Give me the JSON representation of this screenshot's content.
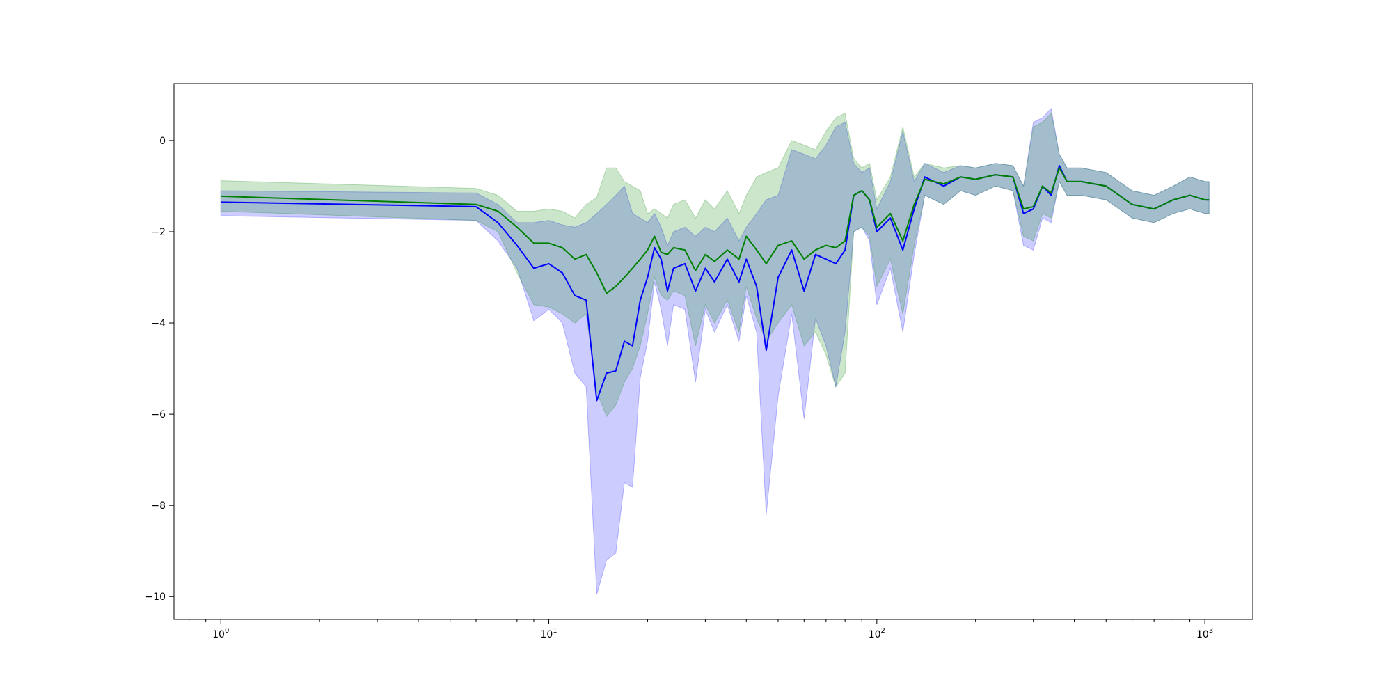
{
  "chart_data": {
    "type": "line",
    "title": "",
    "xlabel": "",
    "ylabel": "",
    "x_scale": "log",
    "xlim": [
      0.72,
      1400
    ],
    "ylim": [
      -10.5,
      1.25
    ],
    "grid": false,
    "legend": "none",
    "x_ticks": [
      {
        "value": 1,
        "base": "10",
        "exp": "0"
      },
      {
        "value": 10,
        "base": "10",
        "exp": "1"
      },
      {
        "value": 100,
        "base": "10",
        "exp": "2"
      },
      {
        "value": 1000,
        "base": "10",
        "exp": "3"
      }
    ],
    "y_ticks": [
      {
        "value": 0,
        "label": "0"
      },
      {
        "value": -2,
        "label": "−2"
      },
      {
        "value": -4,
        "label": "−4"
      },
      {
        "value": -6,
        "label": "−6"
      },
      {
        "value": -8,
        "label": "−8"
      },
      {
        "value": -10,
        "label": "−10"
      }
    ],
    "series": [
      {
        "color": "#0000ff",
        "band_color": "#0000ff",
        "band_opacity": 0.2,
        "x": [
          1,
          6,
          7,
          8,
          9,
          10,
          11,
          12,
          13,
          14,
          15,
          16,
          17,
          18,
          19,
          20,
          21,
          22,
          23,
          24,
          26,
          28,
          30,
          32,
          35,
          38,
          40,
          43,
          46,
          50,
          55,
          60,
          65,
          70,
          75,
          80,
          85,
          90,
          95,
          100,
          110,
          120,
          130,
          140,
          160,
          180,
          200,
          230,
          260,
          280,
          300,
          320,
          340,
          360,
          380,
          420,
          500,
          600,
          700,
          800,
          900,
          1000,
          1030
        ],
        "y": [
          -1.35,
          -1.45,
          -1.8,
          -2.3,
          -2.8,
          -2.7,
          -2.9,
          -3.4,
          -3.5,
          -5.7,
          -5.1,
          -5.05,
          -4.4,
          -4.5,
          -3.5,
          -3.0,
          -2.35,
          -2.6,
          -3.3,
          -2.8,
          -2.7,
          -3.3,
          -2.8,
          -3.1,
          -2.6,
          -3.1,
          -2.6,
          -3.2,
          -4.6,
          -3.0,
          -2.4,
          -3.3,
          -2.5,
          -2.6,
          -2.7,
          -2.4,
          -1.2,
          -1.1,
          -1.3,
          -2.0,
          -1.7,
          -2.4,
          -1.5,
          -0.8,
          -1.0,
          -0.8,
          -0.85,
          -0.75,
          -0.8,
          -1.6,
          -1.5,
          -1.0,
          -1.2,
          -0.55,
          -0.9,
          -0.9,
          -1.0,
          -1.4,
          -1.5,
          -1.3,
          -1.2,
          -1.3,
          -1.3
        ],
        "lower": [
          -1.65,
          -1.75,
          -2.2,
          -2.8,
          -3.95,
          -3.7,
          -4.0,
          -5.1,
          -5.4,
          -9.95,
          -9.2,
          -9.05,
          -7.5,
          -7.6,
          -5.2,
          -4.4,
          -3.1,
          -3.7,
          -4.5,
          -3.6,
          -3.7,
          -5.3,
          -3.7,
          -4.2,
          -3.6,
          -4.4,
          -3.4,
          -4.2,
          -8.2,
          -5.6,
          -3.8,
          -6.1,
          -3.9,
          -4.5,
          -5.4,
          -4.2,
          -2.0,
          -1.9,
          -2.2,
          -3.6,
          -2.8,
          -4.2,
          -2.5,
          -1.2,
          -1.4,
          -1.1,
          -1.2,
          -1.0,
          -1.1,
          -2.3,
          -2.4,
          -1.7,
          -1.8,
          -0.9,
          -1.2,
          -1.2,
          -1.3,
          -1.7,
          -1.8,
          -1.6,
          -1.5,
          -1.6,
          -1.6
        ],
        "upper": [
          -1.1,
          -1.15,
          -1.4,
          -1.8,
          -1.8,
          -1.75,
          -1.85,
          -1.9,
          -1.8,
          -1.6,
          -1.4,
          -1.2,
          -1.0,
          -1.6,
          -1.7,
          -1.8,
          -1.6,
          -1.9,
          -2.3,
          -2.0,
          -1.9,
          -2.1,
          -1.9,
          -2.0,
          -1.7,
          -2.2,
          -1.9,
          -1.6,
          -1.3,
          -1.2,
          -0.2,
          -0.3,
          -0.4,
          -0.1,
          0.3,
          0.4,
          -0.5,
          -0.7,
          -0.6,
          -1.5,
          -0.9,
          0.2,
          -0.9,
          -0.5,
          -0.7,
          -0.55,
          -0.6,
          -0.5,
          -0.55,
          -1.0,
          0.4,
          0.5,
          0.7,
          -0.3,
          -0.6,
          -0.6,
          -0.7,
          -1.1,
          -1.2,
          -1.0,
          -0.8,
          -0.9,
          -0.9
        ]
      },
      {
        "color": "#008000",
        "band_color": "#008000",
        "band_opacity": 0.2,
        "x": [
          1,
          6,
          7,
          8,
          9,
          10,
          11,
          12,
          13,
          14,
          15,
          16,
          17,
          18,
          19,
          20,
          21,
          22,
          23,
          24,
          26,
          28,
          30,
          32,
          35,
          38,
          40,
          43,
          46,
          50,
          55,
          60,
          65,
          70,
          75,
          80,
          85,
          90,
          95,
          100,
          110,
          120,
          130,
          140,
          160,
          180,
          200,
          230,
          260,
          280,
          300,
          320,
          340,
          360,
          380,
          420,
          500,
          600,
          700,
          800,
          900,
          1000,
          1030
        ],
        "y": [
          -1.22,
          -1.4,
          -1.55,
          -1.9,
          -2.25,
          -2.25,
          -2.35,
          -2.6,
          -2.5,
          -2.9,
          -3.35,
          -3.2,
          -3.0,
          -2.8,
          -2.6,
          -2.4,
          -2.1,
          -2.45,
          -2.5,
          -2.35,
          -2.4,
          -2.85,
          -2.5,
          -2.65,
          -2.4,
          -2.6,
          -2.1,
          -2.4,
          -2.7,
          -2.3,
          -2.2,
          -2.6,
          -2.4,
          -2.3,
          -2.35,
          -2.2,
          -1.2,
          -1.1,
          -1.3,
          -1.9,
          -1.6,
          -2.2,
          -1.4,
          -0.85,
          -0.95,
          -0.8,
          -0.85,
          -0.75,
          -0.8,
          -1.5,
          -1.45,
          -1.0,
          -1.15,
          -0.6,
          -0.9,
          -0.9,
          -1.0,
          -1.4,
          -1.5,
          -1.3,
          -1.2,
          -1.3,
          -1.3
        ],
        "lower": [
          -1.55,
          -1.75,
          -2.0,
          -2.9,
          -3.6,
          -3.65,
          -3.8,
          -4.0,
          -3.8,
          -5.5,
          -6.05,
          -5.8,
          -5.3,
          -5.0,
          -4.5,
          -3.8,
          -3.0,
          -3.4,
          -3.5,
          -3.3,
          -3.4,
          -4.5,
          -3.6,
          -4.0,
          -3.5,
          -4.2,
          -3.2,
          -3.9,
          -4.4,
          -4.0,
          -3.6,
          -4.5,
          -4.2,
          -4.7,
          -5.4,
          -5.1,
          -2.0,
          -1.9,
          -2.1,
          -3.2,
          -2.6,
          -3.8,
          -2.3,
          -1.2,
          -1.4,
          -1.1,
          -1.2,
          -1.0,
          -1.1,
          -2.1,
          -2.2,
          -1.6,
          -1.7,
          -0.9,
          -1.2,
          -1.2,
          -1.3,
          -1.7,
          -1.8,
          -1.6,
          -1.5,
          -1.6,
          -1.6
        ],
        "upper": [
          -0.88,
          -1.05,
          -1.2,
          -1.55,
          -1.55,
          -1.5,
          -1.55,
          -1.7,
          -1.4,
          -1.25,
          -0.6,
          -0.6,
          -0.9,
          -1.0,
          -1.1,
          -1.6,
          -1.5,
          -1.6,
          -1.7,
          -1.4,
          -1.3,
          -1.7,
          -1.3,
          -1.5,
          -1.1,
          -1.6,
          -1.2,
          -0.8,
          -0.7,
          -0.6,
          0.0,
          -0.1,
          -0.2,
          0.2,
          0.5,
          0.6,
          -0.4,
          -0.6,
          -0.5,
          -1.3,
          -0.8,
          0.3,
          -0.8,
          -0.5,
          -0.6,
          -0.55,
          -0.6,
          -0.5,
          -0.55,
          -1.0,
          0.3,
          0.4,
          0.6,
          -0.3,
          -0.6,
          -0.6,
          -0.7,
          -1.1,
          -1.2,
          -1.0,
          -0.8,
          -0.9,
          -0.9
        ]
      }
    ]
  }
}
